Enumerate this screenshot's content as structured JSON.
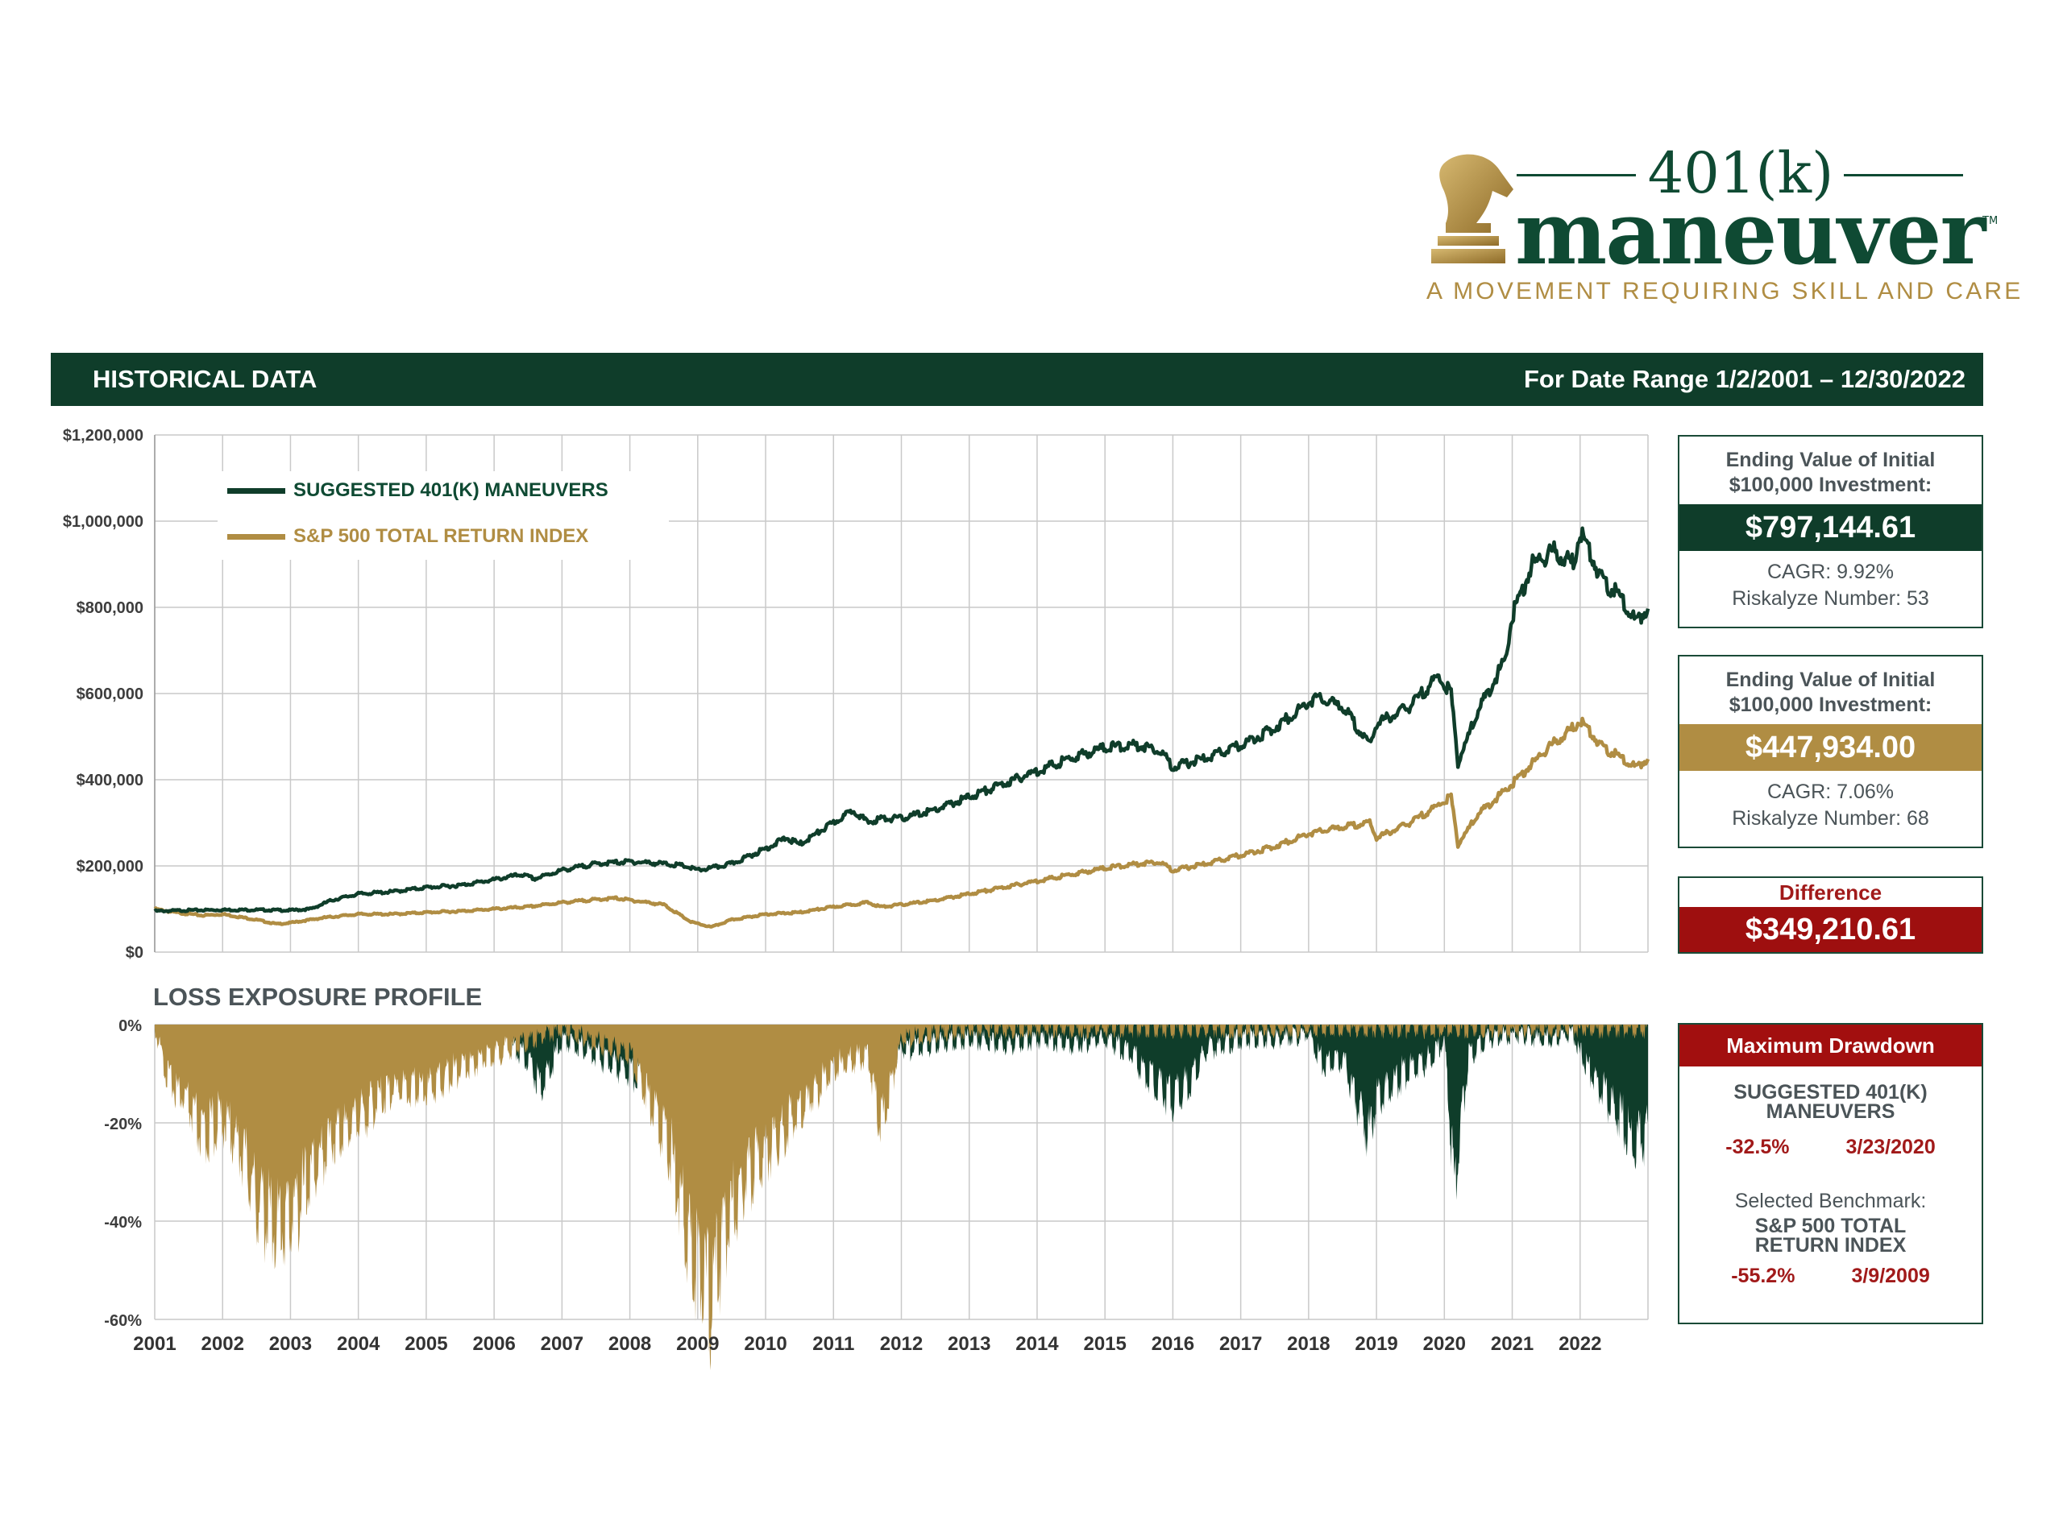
{
  "brand": {
    "logo_top": "401(k)",
    "logo_main": "maneuver",
    "logo_tm": "TM",
    "tagline": "A MOVEMENT REQUIRING SKILL AND CARE",
    "green": "#0f4a33",
    "gold": "#b08d43"
  },
  "header": {
    "title": "HISTORICAL DATA",
    "date_range": "For Date Range 1/2/2001 – 12/30/2022"
  },
  "legend": [
    {
      "label": "SUGGESTED 401(K) MANEUVERS",
      "color": "#0f3d2a"
    },
    {
      "label": "S&P 500 TOTAL RETURN INDEX",
      "color": "#b08d43"
    }
  ],
  "loss_title": "LOSS EXPOSURE PROFILE",
  "boxes": {
    "maneuvers": {
      "heading_1": "Ending Value of Initial",
      "heading_2": "$100,000 Investment:",
      "value": "$797,144.61",
      "cagr": "CAGR: 9.92%",
      "riskalyze": "Riskalyze Number: 53",
      "color": "#0f3d2a"
    },
    "benchmark": {
      "heading_1": "Ending Value of Initial",
      "heading_2": "$100,000 Investment:",
      "value": "$447,934.00",
      "cagr": "CAGR: 7.06%",
      "riskalyze": "Riskalyze Number: 68",
      "color": "#b08d43"
    },
    "difference": {
      "heading": "Difference",
      "value": "$349,210.61",
      "color": "#9e0f0f"
    },
    "drawdown": {
      "heading": "Maximum Drawdown",
      "strategy_name_1": "SUGGESTED 401(K)",
      "strategy_name_2": "MANEUVERS",
      "strategy_dd": "-32.5%",
      "strategy_date": "3/23/2020",
      "benchmark_prefix": "Selected Benchmark:",
      "benchmark_name_1": "S&P 500 TOTAL",
      "benchmark_name_2": "RETURN INDEX",
      "benchmark_dd": "-55.2%",
      "benchmark_date": "3/9/2009"
    }
  },
  "chart_data": [
    {
      "type": "line",
      "title": "",
      "ylim": [
        0,
        1200000
      ],
      "y_ticks": [
        "$0",
        "$200,000",
        "$400,000",
        "$600,000",
        "$800,000",
        "$1,000,000",
        "$1,200,000"
      ],
      "x_ticks": [
        "2001",
        "2002",
        "2003",
        "2004",
        "2005",
        "2006",
        "2007",
        "2008",
        "2009",
        "2010",
        "2011",
        "2012",
        "2013",
        "2014",
        "2015",
        "2016",
        "2017",
        "2018",
        "2019",
        "2020",
        "2021",
        "2022"
      ],
      "grid": true,
      "legend_position": "top-left",
      "series": [
        {
          "name": "SUGGESTED 401(K) MANEUVERS",
          "color": "#0f3d2a",
          "x": [
            2001.0,
            2001.5,
            2002.0,
            2002.5,
            2003.0,
            2003.3,
            2003.6,
            2004.0,
            2004.5,
            2005.0,
            2005.5,
            2006.0,
            2006.4,
            2006.6,
            2007.0,
            2007.5,
            2008.0,
            2008.5,
            2008.8,
            2009.0,
            2009.2,
            2009.5,
            2010.0,
            2010.3,
            2010.5,
            2011.0,
            2011.3,
            2011.5,
            2011.7,
            2012.0,
            2012.5,
            2013.0,
            2013.5,
            2014.0,
            2014.5,
            2015.0,
            2015.5,
            2015.8,
            2016.0,
            2016.5,
            2017.0,
            2017.5,
            2018.0,
            2018.1,
            2018.5,
            2018.9,
            2019.0,
            2019.5,
            2019.9,
            2020.1,
            2020.2,
            2020.5,
            2020.9,
            2021.0,
            2021.3,
            2021.6,
            2021.9,
            2022.0,
            2022.3,
            2022.6,
            2022.8,
            2023.0
          ],
          "values": [
            95000,
            97000,
            98000,
            98000,
            97000,
            100000,
            120000,
            135000,
            140000,
            150000,
            155000,
            168000,
            180000,
            170000,
            190000,
            205000,
            210000,
            205000,
            200000,
            190000,
            195000,
            205000,
            240000,
            265000,
            250000,
            300000,
            330000,
            300000,
            310000,
            310000,
            330000,
            360000,
            390000,
            420000,
            450000,
            475000,
            480000,
            470000,
            430000,
            450000,
            480000,
            520000,
            580000,
            590000,
            570000,
            480000,
            530000,
            570000,
            640000,
            600000,
            440000,
            560000,
            680000,
            780000,
            900000,
            930000,
            900000,
            980000,
            870000,
            820000,
            770000,
            797000
          ]
        },
        {
          "name": "S&P 500 TOTAL RETURN INDEX",
          "color": "#b08d43",
          "x": [
            2001.0,
            2001.3,
            2001.7,
            2002.0,
            2002.5,
            2002.8,
            2003.0,
            2003.5,
            2004.0,
            2004.5,
            2005.0,
            2005.5,
            2006.0,
            2006.5,
            2007.0,
            2007.5,
            2007.8,
            2008.5,
            2008.9,
            2009.2,
            2009.5,
            2010.0,
            2010.5,
            2011.0,
            2011.5,
            2011.7,
            2012.0,
            2012.5,
            2013.0,
            2013.5,
            2014.0,
            2014.5,
            2015.0,
            2015.5,
            2015.8,
            2016.0,
            2016.5,
            2017.0,
            2017.5,
            2018.0,
            2018.5,
            2018.9,
            2019.0,
            2019.5,
            2019.9,
            2020.1,
            2020.2,
            2020.5,
            2021.0,
            2021.5,
            2021.9,
            2022.0,
            2022.3,
            2022.5,
            2022.8,
            2023.0
          ],
          "values": [
            100000,
            92000,
            85000,
            88000,
            75000,
            65000,
            68000,
            80000,
            88000,
            88000,
            92000,
            95000,
            100000,
            105000,
            115000,
            122000,
            125000,
            110000,
            70000,
            58000,
            75000,
            88000,
            92000,
            105000,
            115000,
            105000,
            110000,
            120000,
            135000,
            150000,
            165000,
            180000,
            195000,
            205000,
            210000,
            190000,
            205000,
            225000,
            245000,
            275000,
            290000,
            300000,
            265000,
            300000,
            340000,
            360000,
            250000,
            320000,
            390000,
            470000,
            520000,
            540000,
            480000,
            460000,
            430000,
            448000
          ]
        }
      ]
    },
    {
      "type": "area",
      "title": "LOSS EXPOSURE PROFILE",
      "ylim": [
        -60,
        0
      ],
      "y_ticks": [
        "0%",
        "-20%",
        "-40%",
        "-60%"
      ],
      "x_ticks": [
        "2001",
        "2002",
        "2003",
        "2004",
        "2005",
        "2006",
        "2007",
        "2008",
        "2009",
        "2010",
        "2011",
        "2012",
        "2013",
        "2014",
        "2015",
        "2016",
        "2017",
        "2018",
        "2019",
        "2020",
        "2021",
        "2022"
      ],
      "grid": true,
      "series": [
        {
          "name": "SUGGESTED 401(K) MANEUVERS",
          "color": "#0f3d2a",
          "x": [
            2001.0,
            2001.5,
            2002.0,
            2002.5,
            2003.0,
            2003.5,
            2004.0,
            2004.5,
            2005.0,
            2005.5,
            2006.0,
            2006.3,
            2006.5,
            2006.7,
            2007.0,
            2007.5,
            2007.9,
            2008.2,
            2008.5,
            2008.8,
            2009.0,
            2009.2,
            2009.4,
            2009.7,
            2010.0,
            2010.4,
            2010.6,
            2011.0,
            2011.5,
            2011.7,
            2012.0,
            2012.5,
            2013.0,
            2013.5,
            2014.0,
            2014.5,
            2015.0,
            2015.4,
            2015.6,
            2016.0,
            2016.2,
            2016.5,
            2017.0,
            2017.5,
            2018.0,
            2018.2,
            2018.5,
            2018.9,
            2019.0,
            2019.5,
            2019.8,
            2020.0,
            2020.15,
            2020.2,
            2020.35,
            2020.6,
            2021.0,
            2021.5,
            2021.9,
            2022.0,
            2022.3,
            2022.6,
            2022.8,
            2023.0
          ],
          "values": [
            0,
            -2,
            -3,
            -3,
            -2,
            -2,
            -2,
            -4,
            -3,
            -3,
            -2,
            -4,
            -6,
            -12,
            -2,
            -5,
            -8,
            -10,
            -15,
            -18,
            -22,
            -16,
            -10,
            -8,
            -5,
            -10,
            -14,
            -3,
            -5,
            -12,
            -4,
            -3,
            -2,
            -3,
            -2,
            -3,
            -2,
            -5,
            -9,
            -14,
            -12,
            -4,
            -2,
            -2,
            -1,
            -7,
            -6,
            -22,
            -14,
            -8,
            -6,
            -2,
            -32.5,
            -25,
            -6,
            -2,
            -1,
            -2,
            -1,
            -5,
            -12,
            -18,
            -24,
            -20
          ]
        },
        {
          "name": "S&P 500 TOTAL RETURN INDEX",
          "color": "#b08d43",
          "x": [
            2001.0,
            2001.2,
            2001.5,
            2001.7,
            2002.0,
            2002.3,
            2002.5,
            2002.8,
            2003.0,
            2003.3,
            2003.6,
            2004.0,
            2004.5,
            2005.0,
            2005.5,
            2006.0,
            2007.0,
            2008.0,
            2008.3,
            2008.6,
            2008.9,
            2009.0,
            2009.19,
            2009.4,
            2009.7,
            2010.0,
            2010.3,
            2010.6,
            2011.0,
            2011.5,
            2011.7,
            2012.0,
            2013.0,
            2023.0
          ],
          "values": [
            0,
            -10,
            -15,
            -22,
            -18,
            -25,
            -35,
            -40,
            -38,
            -30,
            -22,
            -18,
            -12,
            -12,
            -8,
            -5,
            0,
            -5,
            -15,
            -25,
            -45,
            -48,
            -55.2,
            -42,
            -30,
            -25,
            -20,
            -15,
            -8,
            -5,
            -20,
            -2,
            0,
            0
          ]
        }
      ]
    }
  ]
}
